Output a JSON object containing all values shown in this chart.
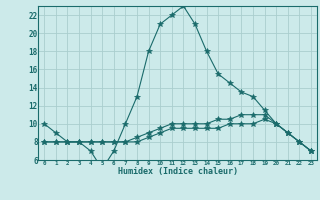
{
  "title": "",
  "xlabel": "Humidex (Indice chaleur)",
  "bg_color": "#cceaea",
  "grid_color": "#aacece",
  "line_color": "#1a6b6b",
  "xlim": [
    -0.5,
    23.5
  ],
  "ylim": [
    6,
    23
  ],
  "xticks": [
    0,
    1,
    2,
    3,
    4,
    5,
    6,
    7,
    8,
    9,
    10,
    11,
    12,
    13,
    14,
    15,
    16,
    17,
    18,
    19,
    20,
    21,
    22,
    23
  ],
  "yticks": [
    6,
    8,
    10,
    12,
    14,
    16,
    18,
    20,
    22
  ],
  "line1_x": [
    0,
    1,
    2,
    3,
    4,
    5,
    6,
    7,
    8,
    9,
    10,
    11,
    12,
    13,
    14,
    15,
    16,
    17,
    18,
    19,
    20,
    21,
    22,
    23
  ],
  "line1_y": [
    10,
    9,
    8,
    8,
    7,
    5,
    7,
    10,
    13,
    18,
    21,
    22,
    23,
    21,
    18,
    15.5,
    14.5,
    13.5,
    13,
    11.5,
    10,
    9,
    8,
    7
  ],
  "line2_x": [
    0,
    1,
    2,
    3,
    4,
    5,
    6,
    7,
    8,
    9,
    10,
    11,
    12,
    13,
    14,
    15,
    16,
    17,
    18,
    19,
    20,
    21,
    22,
    23
  ],
  "line2_y": [
    8,
    8,
    8,
    8,
    8,
    8,
    8,
    8,
    8.5,
    9,
    9.5,
    10,
    10,
    10,
    10,
    10.5,
    10.5,
    11,
    11,
    11,
    10,
    9,
    8,
    7
  ],
  "line3_x": [
    0,
    1,
    2,
    3,
    4,
    5,
    6,
    7,
    8,
    9,
    10,
    11,
    12,
    13,
    14,
    15,
    16,
    17,
    18,
    19,
    20,
    21,
    22,
    23
  ],
  "line3_y": [
    8,
    8,
    8,
    8,
    8,
    8,
    8,
    8,
    8,
    8.5,
    9,
    9.5,
    9.5,
    9.5,
    9.5,
    9.5,
    10,
    10,
    10,
    10.5,
    10,
    9,
    8,
    7
  ]
}
